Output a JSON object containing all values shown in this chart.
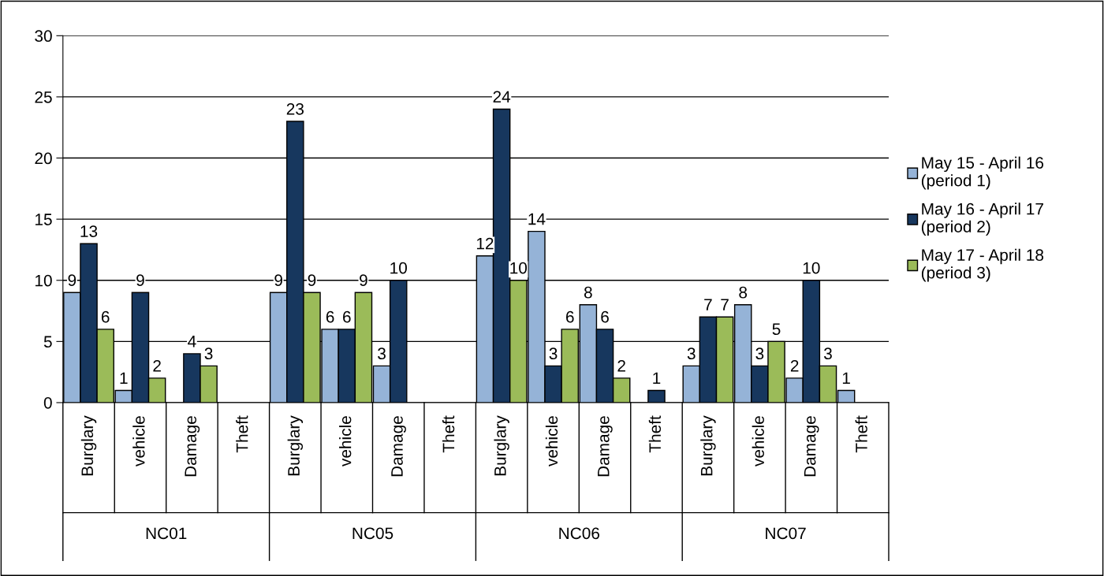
{
  "chart_data": {
    "type": "bar",
    "categories": [
      "Burglary",
      "vehicle",
      "Damage",
      "Theft",
      "Burglary",
      "vehicle",
      "Damage",
      "Theft",
      "Burglary",
      "vehicle",
      "Damage",
      "Theft",
      "Burglary",
      "vehicle",
      "Damage",
      "Theft"
    ],
    "annotations": [
      "NC01",
      "NC05",
      "NC06",
      "NC07"
    ],
    "series": [
      {
        "name": "May 15 - April 16\n(period 1)",
        "color": "#95b3d7",
        "values": [
          9,
          1,
          null,
          null,
          9,
          6,
          3,
          null,
          12,
          14,
          8,
          null,
          3,
          8,
          2,
          1
        ]
      },
      {
        "name": "May 16 - April 17\n(period 2)",
        "color": "#17375e",
        "values": [
          13,
          9,
          4,
          null,
          23,
          6,
          10,
          null,
          24,
          3,
          6,
          1,
          7,
          3,
          10,
          null
        ]
      },
      {
        "name": "May 17 - April 18\n(period 3)",
        "color": "#9bbb59",
        "values": [
          6,
          2,
          3,
          null,
          9,
          9,
          null,
          null,
          10,
          6,
          2,
          null,
          7,
          5,
          3,
          null
        ]
      }
    ],
    "ylim": [
      0,
      30
    ],
    "yticks": [
      0,
      5,
      10,
      15,
      20,
      25,
      30
    ],
    "grid": "y",
    "legend": "right",
    "data_labels": true
  }
}
